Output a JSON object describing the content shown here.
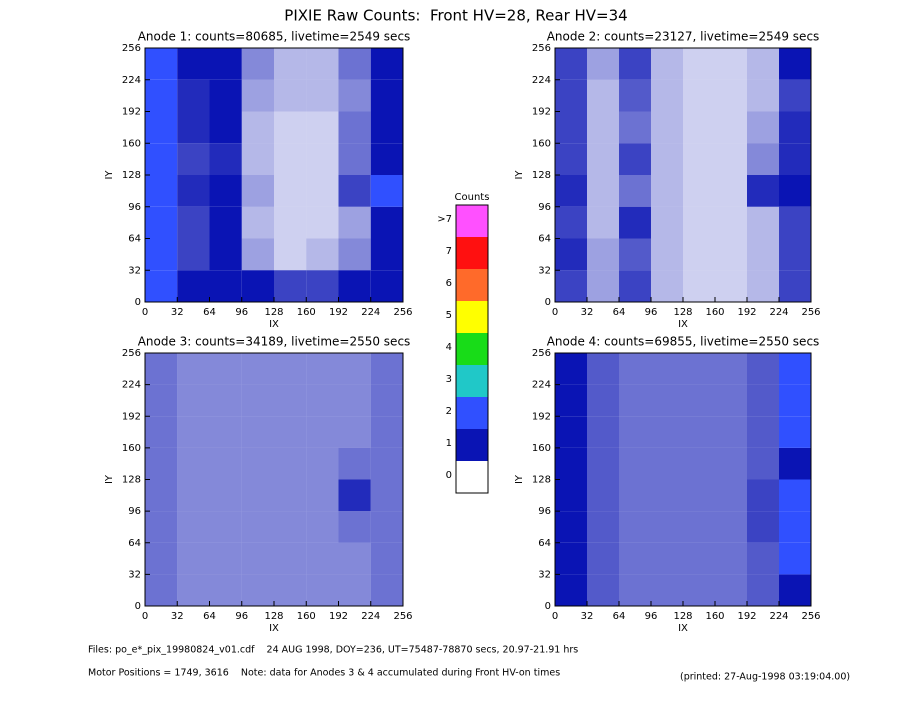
{
  "title": "PIXIE Raw Counts:  Front HV=28, Rear HV=34",
  "chart_data": [
    {
      "type": "heatmap",
      "title": "Anode 1: counts=80685, livetime=2549 secs",
      "xlabel": "IX",
      "ylabel": "IY",
      "xbins": [
        0,
        32,
        64,
        96,
        128,
        160,
        192,
        224,
        256
      ],
      "ybins": [
        0,
        32,
        64,
        96,
        128,
        160,
        192,
        224,
        256
      ],
      "xlim": [
        0,
        256
      ],
      "ylim": [
        0,
        256
      ],
      "xticks": [
        0,
        32,
        64,
        96,
        128,
        160,
        192,
        224,
        256
      ],
      "yticks": [
        0,
        32,
        64,
        96,
        128,
        160,
        192,
        224,
        256
      ],
      "z": [
        [
          2.5,
          1.2,
          1.5,
          1.0,
          0.8,
          0.8,
          1.0,
          1.5
        ],
        [
          2.5,
          0.8,
          1.2,
          0.4,
          0.2,
          0.3,
          0.5,
          1.5
        ],
        [
          2.5,
          0.8,
          1.0,
          0.3,
          0.2,
          0.2,
          0.4,
          1.5
        ],
        [
          2.8,
          0.9,
          1.2,
          0.4,
          0.2,
          0.2,
          0.8,
          2.5
        ],
        [
          2.5,
          0.8,
          0.9,
          0.3,
          0.2,
          0.2,
          0.6,
          1.8
        ],
        [
          2.8,
          0.9,
          1.2,
          0.3,
          0.2,
          0.2,
          0.6,
          1.5
        ],
        [
          2.5,
          0.9,
          1.2,
          0.4,
          0.3,
          0.3,
          0.5,
          1.5
        ],
        [
          2.2,
          1.0,
          1.0,
          0.5,
          0.3,
          0.3,
          0.6,
          1.5
        ]
      ]
    },
    {
      "type": "heatmap",
      "title": "Anode 2: counts=23127, livetime=2549 secs",
      "xlabel": "IX",
      "ylabel": "IY",
      "xbins": [
        0,
        32,
        64,
        96,
        128,
        160,
        192,
        224,
        256
      ],
      "ybins": [
        0,
        32,
        64,
        96,
        128,
        160,
        192,
        224,
        256
      ],
      "xlim": [
        0,
        256
      ],
      "ylim": [
        0,
        256
      ],
      "xticks": [
        0,
        32,
        64,
        96,
        128,
        160,
        192,
        224,
        256
      ],
      "yticks": [
        0,
        32,
        64,
        96,
        128,
        160,
        192,
        224,
        256
      ],
      "z": [
        [
          0.8,
          0.4,
          0.8,
          0.3,
          0.2,
          0.2,
          0.3,
          0.8
        ],
        [
          0.9,
          0.4,
          0.7,
          0.3,
          0.2,
          0.2,
          0.3,
          0.8
        ],
        [
          0.8,
          0.3,
          0.9,
          0.3,
          0.2,
          0.2,
          0.3,
          0.8
        ],
        [
          0.9,
          0.3,
          0.6,
          0.3,
          0.2,
          0.2,
          0.9,
          1.0
        ],
        [
          0.8,
          0.3,
          0.8,
          0.3,
          0.2,
          0.2,
          0.5,
          0.9
        ],
        [
          0.8,
          0.3,
          0.6,
          0.3,
          0.2,
          0.2,
          0.4,
          0.9
        ],
        [
          0.8,
          0.3,
          0.7,
          0.3,
          0.2,
          0.2,
          0.3,
          0.8
        ],
        [
          0.8,
          0.4,
          0.8,
          0.3,
          0.2,
          0.2,
          0.3,
          1.0
        ]
      ]
    },
    {
      "type": "heatmap",
      "title": "Anode 3: counts=34189, livetime=2550 secs",
      "xlabel": "IX",
      "ylabel": "IY",
      "xbins": [
        0,
        32,
        64,
        96,
        128,
        160,
        192,
        224,
        256
      ],
      "ybins": [
        0,
        32,
        64,
        96,
        128,
        160,
        192,
        224,
        256
      ],
      "xlim": [
        0,
        256
      ],
      "ylim": [
        0,
        256
      ],
      "xticks": [
        0,
        32,
        64,
        96,
        128,
        160,
        192,
        224,
        256
      ],
      "yticks": [
        0,
        32,
        64,
        96,
        128,
        160,
        192,
        224,
        256
      ],
      "z": [
        [
          0.6,
          0.5,
          0.5,
          0.5,
          0.5,
          0.5,
          0.5,
          0.6
        ],
        [
          0.6,
          0.5,
          0.5,
          0.5,
          0.5,
          0.5,
          0.5,
          0.6
        ],
        [
          0.6,
          0.5,
          0.5,
          0.5,
          0.5,
          0.5,
          0.6,
          0.6
        ],
        [
          0.6,
          0.5,
          0.5,
          0.5,
          0.5,
          0.5,
          0.9,
          0.6
        ],
        [
          0.6,
          0.5,
          0.5,
          0.5,
          0.5,
          0.5,
          0.6,
          0.6
        ],
        [
          0.6,
          0.5,
          0.5,
          0.5,
          0.5,
          0.5,
          0.5,
          0.6
        ],
        [
          0.6,
          0.5,
          0.5,
          0.5,
          0.5,
          0.5,
          0.5,
          0.6
        ],
        [
          0.6,
          0.5,
          0.5,
          0.5,
          0.5,
          0.5,
          0.5,
          0.6
        ]
      ]
    },
    {
      "type": "heatmap",
      "title": "Anode 4: counts=69855, livetime=2550 secs",
      "xlabel": "IX",
      "ylabel": "IY",
      "xbins": [
        0,
        32,
        64,
        96,
        128,
        160,
        192,
        224,
        256
      ],
      "ybins": [
        0,
        32,
        64,
        96,
        128,
        160,
        192,
        224,
        256
      ],
      "xlim": [
        0,
        256
      ],
      "ylim": [
        0,
        256
      ],
      "xticks": [
        0,
        32,
        64,
        96,
        128,
        160,
        192,
        224,
        256
      ],
      "yticks": [
        0,
        32,
        64,
        96,
        128,
        160,
        192,
        224,
        256
      ],
      "z": [
        [
          1.5,
          0.7,
          0.6,
          0.6,
          0.6,
          0.6,
          0.7,
          1.8
        ],
        [
          1.8,
          0.7,
          0.6,
          0.6,
          0.6,
          0.6,
          0.7,
          2.0
        ],
        [
          1.8,
          0.7,
          0.6,
          0.6,
          0.6,
          0.6,
          0.8,
          2.0
        ],
        [
          1.6,
          0.7,
          0.6,
          0.6,
          0.6,
          0.6,
          0.8,
          2.0
        ],
        [
          1.6,
          0.7,
          0.6,
          0.6,
          0.6,
          0.6,
          0.7,
          1.8
        ],
        [
          1.5,
          0.7,
          0.6,
          0.6,
          0.6,
          0.6,
          0.7,
          2.0
        ],
        [
          1.5,
          0.7,
          0.6,
          0.6,
          0.6,
          0.6,
          0.7,
          2.2
        ],
        [
          1.4,
          0.7,
          0.6,
          0.6,
          0.6,
          0.6,
          0.7,
          2.0
        ]
      ]
    }
  ],
  "colorbar": {
    "title": "Counts",
    "levels": [
      "0",
      "1",
      "2",
      "3",
      "4",
      "5",
      "6",
      "7",
      ">7"
    ],
    "colors": [
      "#ffffff",
      "#0a14b4",
      "#3050ff",
      "#20c8c8",
      "#18dc18",
      "#ffff00",
      "#ff6a2a",
      "#ff1010",
      "#ff50ff"
    ]
  },
  "footer": {
    "files": "Files: po_e*_pix_19980824_v01.cdf    24 AUG 1998, DOY=236, UT=75487-78870 secs, 20.97-21.91 hrs",
    "motor": "Motor Positions = 1749, 3616    Note: data for Anodes 3 & 4 accumulated during Front HV-on times",
    "printed": "(printed: 27-Aug-1998 03:19:04.00)"
  }
}
